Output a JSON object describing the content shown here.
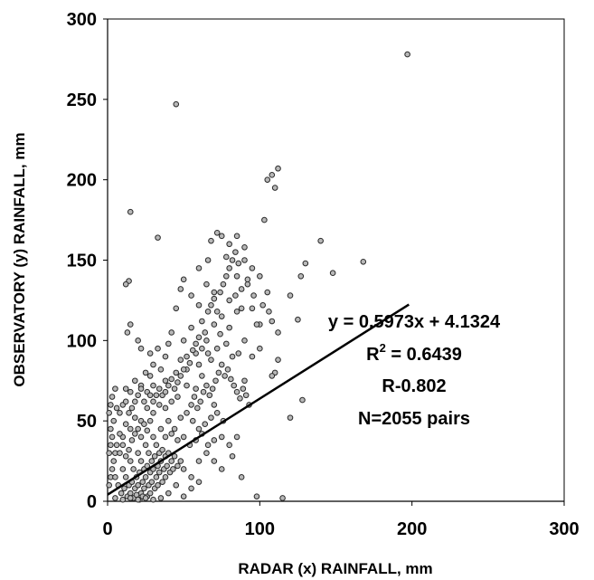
{
  "chart_data": {
    "type": "scatter",
    "xlabel": "RADAR (x) RAINFALL, mm",
    "ylabel": "OBSERVATORY (y) RAINFALL, mm",
    "xlim": [
      0,
      300
    ],
    "ylim": [
      0,
      300
    ],
    "x_ticks": [
      "0",
      "100",
      "200",
      "300"
    ],
    "y_ticks": [
      "0",
      "50",
      "100",
      "150",
      "200",
      "250",
      "300"
    ],
    "grid": false,
    "legend": "none",
    "marker_fill": "#b8b8b8",
    "marker_edge": "#2a2a2a",
    "trendline": {
      "slope": 0.5973,
      "intercept": 4.1324,
      "x_start": 0,
      "x_end": 198
    },
    "annotations": {
      "equation": "y = 0.5973x + 4.1324",
      "r2_prefix": "R",
      "r2_sup": "2",
      "r2_value": " = 0.6439",
      "r_value": "R-0.802",
      "n_pairs": "N=2055 pairs"
    },
    "series": [
      {
        "points": [
          [
            197,
            278
          ],
          [
            45,
            247
          ],
          [
            15,
            180
          ],
          [
            33,
            164
          ],
          [
            112,
            207
          ],
          [
            108,
            203
          ],
          [
            105,
            200
          ],
          [
            110,
            195
          ],
          [
            103,
            175
          ],
          [
            140,
            162
          ],
          [
            148,
            142
          ],
          [
            168,
            149
          ],
          [
            130,
            148
          ],
          [
            127,
            140
          ],
          [
            120,
            128
          ],
          [
            125,
            113
          ],
          [
            128,
            63
          ],
          [
            120,
            52
          ],
          [
            108,
            112
          ],
          [
            112,
            105
          ],
          [
            100,
            110
          ],
          [
            110,
            80
          ],
          [
            108,
            78
          ],
          [
            112,
            88
          ],
          [
            100,
            95
          ],
          [
            95,
            90
          ],
          [
            90,
            75
          ],
          [
            98,
            3
          ],
          [
            115,
            2
          ],
          [
            88,
            15
          ],
          [
            82,
            28
          ],
          [
            75,
            40
          ],
          [
            70,
            60
          ],
          [
            72,
            167
          ],
          [
            75,
            165
          ],
          [
            68,
            162
          ],
          [
            85,
            165
          ],
          [
            90,
            158
          ],
          [
            80,
            160
          ],
          [
            78,
            152
          ],
          [
            66,
            150
          ],
          [
            60,
            145
          ],
          [
            85,
            140
          ],
          [
            92,
            135
          ],
          [
            65,
            135
          ],
          [
            70,
            130
          ],
          [
            55,
            128
          ],
          [
            50,
            138
          ],
          [
            48,
            132
          ],
          [
            60,
            122
          ],
          [
            45,
            120
          ],
          [
            80,
            125
          ],
          [
            85,
            118
          ],
          [
            75,
            115
          ],
          [
            70,
            110
          ],
          [
            62,
            112
          ],
          [
            55,
            108
          ],
          [
            50,
            100
          ],
          [
            42,
            105
          ],
          [
            40,
            98
          ],
          [
            65,
            100
          ],
          [
            72,
            95
          ],
          [
            58,
            92
          ],
          [
            48,
            88
          ],
          [
            38,
            90
          ],
          [
            35,
            82
          ],
          [
            30,
            85
          ],
          [
            28,
            78
          ],
          [
            25,
            80
          ],
          [
            22,
            72
          ],
          [
            18,
            75
          ],
          [
            15,
            68
          ],
          [
            12,
            70
          ],
          [
            10,
            60
          ],
          [
            8,
            55
          ],
          [
            14,
            137
          ],
          [
            12,
            135
          ],
          [
            15,
            110
          ],
          [
            13,
            105
          ],
          [
            20,
            100
          ],
          [
            22,
            95
          ],
          [
            28,
            92
          ],
          [
            33,
            95
          ],
          [
            38,
            75
          ],
          [
            45,
            80
          ],
          [
            52,
            82
          ],
          [
            60,
            85
          ],
          [
            68,
            88
          ],
          [
            78,
            98
          ],
          [
            82,
            90
          ],
          [
            86,
            92
          ],
          [
            90,
            100
          ],
          [
            95,
            120
          ],
          [
            98,
            110
          ],
          [
            88,
            120
          ],
          [
            80,
            108
          ],
          [
            74,
            104
          ],
          [
            66,
            92
          ],
          [
            62,
            78
          ],
          [
            58,
            70
          ],
          [
            52,
            72
          ],
          [
            46,
            65
          ],
          [
            42,
            62
          ],
          [
            38,
            58
          ],
          [
            34,
            60
          ],
          [
            30,
            55
          ],
          [
            26,
            58
          ],
          [
            22,
            50
          ],
          [
            18,
            52
          ],
          [
            15,
            45
          ],
          [
            12,
            48
          ],
          [
            10,
            40
          ],
          [
            8,
            42
          ],
          [
            6,
            35
          ],
          [
            5,
            30
          ],
          [
            4,
            25
          ],
          [
            3,
            20
          ],
          [
            2,
            15
          ],
          [
            1,
            10
          ],
          [
            3,
            65
          ],
          [
            5,
            70
          ],
          [
            2,
            45
          ],
          [
            4,
            50
          ],
          [
            6,
            58
          ],
          [
            1,
            30
          ],
          [
            2,
            35
          ],
          [
            3,
            40
          ],
          [
            1,
            55
          ],
          [
            2,
            60
          ],
          [
            40,
            50
          ],
          [
            44,
            45
          ],
          [
            48,
            52
          ],
          [
            52,
            55
          ],
          [
            56,
            50
          ],
          [
            60,
            45
          ],
          [
            64,
            48
          ],
          [
            68,
            52
          ],
          [
            72,
            55
          ],
          [
            76,
            50
          ],
          [
            35,
            45
          ],
          [
            38,
            40
          ],
          [
            42,
            42
          ],
          [
            46,
            38
          ],
          [
            50,
            40
          ],
          [
            54,
            35
          ],
          [
            58,
            38
          ],
          [
            62,
            42
          ],
          [
            66,
            35
          ],
          [
            70,
            38
          ],
          [
            30,
            40
          ],
          [
            32,
            35
          ],
          [
            34,
            30
          ],
          [
            36,
            32
          ],
          [
            38,
            28
          ],
          [
            40,
            30
          ],
          [
            42,
            25
          ],
          [
            44,
            28
          ],
          [
            46,
            22
          ],
          [
            48,
            25
          ],
          [
            25,
            35
          ],
          [
            27,
            30
          ],
          [
            29,
            25
          ],
          [
            31,
            28
          ],
          [
            33,
            22
          ],
          [
            35,
            25
          ],
          [
            37,
            20
          ],
          [
            39,
            22
          ],
          [
            41,
            18
          ],
          [
            43,
            20
          ],
          [
            20,
            30
          ],
          [
            22,
            25
          ],
          [
            24,
            20
          ],
          [
            26,
            22
          ],
          [
            28,
            18
          ],
          [
            30,
            20
          ],
          [
            32,
            15
          ],
          [
            34,
            18
          ],
          [
            36,
            12
          ],
          [
            38,
            15
          ],
          [
            15,
            25
          ],
          [
            17,
            20
          ],
          [
            19,
            15
          ],
          [
            21,
            18
          ],
          [
            23,
            12
          ],
          [
            25,
            15
          ],
          [
            27,
            10
          ],
          [
            29,
            12
          ],
          [
            31,
            8
          ],
          [
            33,
            10
          ],
          [
            10,
            20
          ],
          [
            12,
            15
          ],
          [
            14,
            10
          ],
          [
            16,
            12
          ],
          [
            18,
            8
          ],
          [
            20,
            10
          ],
          [
            22,
            5
          ],
          [
            24,
            8
          ],
          [
            26,
            3
          ],
          [
            28,
            5
          ],
          [
            5,
            15
          ],
          [
            7,
            10
          ],
          [
            9,
            5
          ],
          [
            11,
            8
          ],
          [
            13,
            3
          ],
          [
            15,
            5
          ],
          [
            17,
            2
          ],
          [
            19,
            4
          ],
          [
            21,
            1
          ],
          [
            23,
            3
          ],
          [
            8,
            30
          ],
          [
            10,
            35
          ],
          [
            12,
            28
          ],
          [
            14,
            32
          ],
          [
            16,
            38
          ],
          [
            18,
            42
          ],
          [
            20,
            45
          ],
          [
            22,
            40
          ],
          [
            24,
            48
          ],
          [
            26,
            44
          ],
          [
            28,
            50
          ],
          [
            30,
            62
          ],
          [
            32,
            66
          ],
          [
            34,
            70
          ],
          [
            36,
            66
          ],
          [
            38,
            68
          ],
          [
            40,
            72
          ],
          [
            42,
            76
          ],
          [
            44,
            70
          ],
          [
            46,
            74
          ],
          [
            48,
            78
          ],
          [
            50,
            82
          ],
          [
            52,
            90
          ],
          [
            54,
            86
          ],
          [
            56,
            94
          ],
          [
            58,
            98
          ],
          [
            60,
            102
          ],
          [
            62,
            95
          ],
          [
            64,
            105
          ],
          [
            66,
            118
          ],
          [
            68,
            122
          ],
          [
            70,
            126
          ],
          [
            72,
            118
          ],
          [
            74,
            130
          ],
          [
            76,
            135
          ],
          [
            78,
            140
          ],
          [
            80,
            145
          ],
          [
            82,
            150
          ],
          [
            84,
            155
          ],
          [
            86,
            148
          ],
          [
            55,
            60
          ],
          [
            57,
            65
          ],
          [
            59,
            58
          ],
          [
            61,
            62
          ],
          [
            63,
            68
          ],
          [
            65,
            72
          ],
          [
            67,
            66
          ],
          [
            69,
            70
          ],
          [
            71,
            75
          ],
          [
            73,
            80
          ],
          [
            75,
            85
          ],
          [
            77,
            78
          ],
          [
            79,
            82
          ],
          [
            81,
            76
          ],
          [
            83,
            72
          ],
          [
            85,
            68
          ],
          [
            87,
            64
          ],
          [
            89,
            70
          ],
          [
            91,
            66
          ],
          [
            93,
            60
          ],
          [
            50,
            20
          ],
          [
            55,
            15
          ],
          [
            60,
            25
          ],
          [
            65,
            30
          ],
          [
            70,
            25
          ],
          [
            75,
            20
          ],
          [
            80,
            35
          ],
          [
            85,
            40
          ],
          [
            45,
            10
          ],
          [
            40,
            5
          ],
          [
            35,
            2
          ],
          [
            50,
            3
          ],
          [
            55,
            8
          ],
          [
            60,
            12
          ],
          [
            30,
            1
          ],
          [
            25,
            2
          ],
          [
            20,
            1
          ],
          [
            15,
            2
          ],
          [
            10,
            1
          ],
          [
            5,
            2
          ],
          [
            100,
            140
          ],
          [
            105,
            130
          ],
          [
            95,
            145
          ],
          [
            90,
            150
          ],
          [
            92,
            138
          ],
          [
            96,
            128
          ],
          [
            102,
            122
          ],
          [
            106,
            118
          ],
          [
            88,
            132
          ],
          [
            84,
            128
          ],
          [
            18,
            62
          ],
          [
            20,
            66
          ],
          [
            22,
            70
          ],
          [
            24,
            62
          ],
          [
            26,
            68
          ],
          [
            28,
            66
          ],
          [
            30,
            72
          ],
          [
            16,
            58
          ],
          [
            14,
            55
          ],
          [
            12,
            62
          ]
        ]
      }
    ]
  }
}
